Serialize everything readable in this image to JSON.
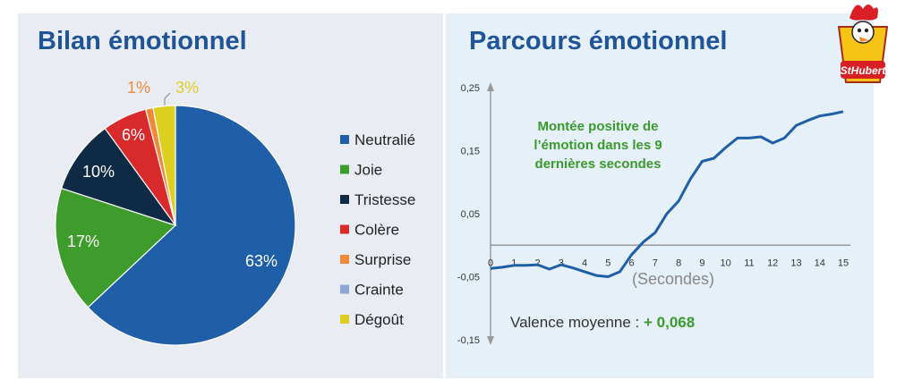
{
  "pie": {
    "title": "Bilan émotionnel",
    "colors": {
      "Neutralié": "#1f5fa8",
      "Joie": "#3e9c2c",
      "Tristesse": "#0f2a44",
      "Colère": "#d82a2a",
      "Surprise": "#f08a3a",
      "Crainte": "#8fa7d4",
      "Dégoût": "#ddcf1f"
    }
  },
  "line": {
    "title": "Parcours émotionnel",
    "annotation": [
      "Montée positive de",
      "l’émotion dans les 9",
      "dernières secondes"
    ],
    "valence_label": "Valence moyenne : ",
    "valence_value": "+ 0,068",
    "line_color": "#1f5fa8",
    "annotation_color": "#3a9a2c"
  },
  "logo": {
    "text": "StHubert",
    "colors": {
      "background": "#f6c417",
      "accent": "#d81f26"
    }
  },
  "chart_data": [
    {
      "type": "pie",
      "title": "Bilan émotionnel",
      "legend_position": "right",
      "categories": [
        "Neutralié",
        "Joie",
        "Tristesse",
        "Colère",
        "Surprise",
        "Crainte",
        "Dégoût"
      ],
      "values": [
        63,
        17,
        10,
        6,
        1,
        0,
        3
      ],
      "data_labels": [
        "63%",
        "17%",
        "10%",
        "6%",
        "1%",
        "",
        "3%"
      ]
    },
    {
      "type": "line",
      "title": "Parcours émotionnel",
      "xlabel": "(Secondes)",
      "ylabel": "",
      "xlim": [
        0,
        15
      ],
      "ylim": [
        -0.15,
        0.25
      ],
      "x_ticks": [
        0,
        1,
        2,
        3,
        4,
        5,
        6,
        7,
        8,
        9,
        10,
        11,
        12,
        13,
        14,
        15
      ],
      "x_tick_labels": [
        "0",
        "1",
        "2",
        "3",
        "4",
        "5",
        "6",
        "7",
        "8",
        "9",
        "10",
        "11",
        "12",
        "13",
        "14",
        "15"
      ],
      "y_ticks": [
        0.25,
        0.15,
        0.05,
        -0.05,
        -0.15
      ],
      "y_tick_labels": [
        "0,25",
        "0,15",
        "0,05",
        "-0,05",
        "-0,15"
      ],
      "grid": false,
      "series": [
        {
          "x": [
            0,
            0.5,
            1,
            1.5,
            2,
            2.5,
            3,
            3.5,
            4,
            4.5,
            5,
            5.5,
            6,
            6.5,
            7,
            7.5,
            8,
            8.5,
            9,
            9.5,
            10,
            10.5,
            11,
            11.5,
            12,
            12.5,
            13,
            13.5,
            14,
            14.5,
            15
          ],
          "y": [
            -0.037,
            -0.035,
            -0.032,
            -0.032,
            -0.031,
            -0.038,
            -0.031,
            -0.036,
            -0.042,
            -0.048,
            -0.05,
            -0.042,
            -0.015,
            0.005,
            0.02,
            0.05,
            0.07,
            0.105,
            0.133,
            0.138,
            0.155,
            0.17,
            0.17,
            0.172,
            0.162,
            0.17,
            0.19,
            0.198,
            0.205,
            0.208,
            0.212
          ]
        }
      ]
    }
  ]
}
